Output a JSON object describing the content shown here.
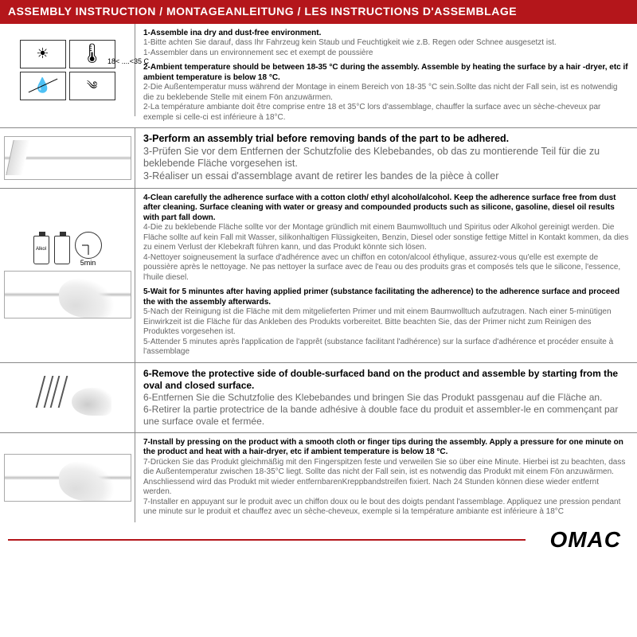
{
  "header": "ASSEMBLY INSTRUCTION / MONTAGEANLEITUNG / LES INSTRUCTIONS D'ASSEMBLAGE",
  "s1": {
    "temp_range": "18< ....<35 C",
    "l1": "1-Assemble ina dry and dust-free environment.",
    "l1de": "1-Bitte achten Sie darauf, dass Ihr Fahrzeug kein Staub und Feuchtigkeit wie z.B. Regen oder Schnee ausgesetzt ist.",
    "l1fr": "1-Assembler dans un environnement sec et exempt de poussière",
    "l2": "2-Ambient temperature should be between 18-35 °C  during the assembly. Assemble by heating the surface by a hair -dryer, etc if ambient temperature is below 18 °C.",
    "l2de": "2-Die Außentemperatur muss während der Montage in einem Bereich von 18-35 °C  sein.Sollte das nicht der Fall sein, ist es notwendig die zu beklebende Stelle mit einem Fön anzuwärmen.",
    "l2fr": "2-La température ambiante doit être comprise entre 18 et 35°C lors d'assemblage, chauffer la surface avec un sèche-cheveux par exemple si celle-ci est inférieure à 18°C."
  },
  "s2": {
    "l3": "3-Perform an assembly trial before removing bands of the part to be adhered.",
    "l3de": "3-Prüfen Sie vor dem Entfernen der Schutzfolie des Klebebandes, ob das zu montierende Teil für die zu beklebende Fläche vorgesehen ist.",
    "l3fr": "3-Réaliser un essai d'assemblage avant de retirer les bandes de la pièce à coller"
  },
  "s3": {
    "bottle": "Alkol",
    "clock_label": "5min",
    "l4": "4-Clean carefully the adherence surface with a cotton cloth/ ethyl alcohol/alcohol. Keep the adherence surface free from dust after cleaning. Surface cleaning with water or greasy and compounded products such as silicone, gasoline, diesel oil results with part fall down.",
    "l4de": "4-Die zu beklebende Fläche sollte vor der Montage gründlich mit einem Baumwolltuch und Spiritus oder Alkohol gereinigt werden. Die Fläche sollte auf kein Fall mit Wasser, silikonhaltigen Flüssigkeiten, Benzin, Diesel oder sonstige fettige Mittel in Kontakt kommen, da dies zu einem Verlust der Klebekraft führen kann, und das Produkt könnte sich lösen.",
    "l4fr": "4-Nettoyer soigneusement la surface d'adhérence avec un chiffon en coton/alcool éthylique, assurez-vous qu'elle est exempte de poussière après le nettoyage. Ne pas nettoyer la surface avec de l'eau ou des produits gras et composés tels que le silicone, l'essence, l'huile diesel.",
    "l5": "5-Wait for 5 minuntes after having applied primer (substance facilitating the adherence) to the adherence surface and proceed the with the assembly afterwards.",
    "l5de": "5-Nach der Reinigung ist die Fläche mit dem mitgelieferten Primer und mit einem Baumwolltuch aufzutragen. Nach einer 5-minütigen Einwirkzeit ist die Fläche für das Ankleben des Produkts vorbereitet. Bitte beachten Sie, das der Primer nicht zum Reinigen des Produktes vorgesehen ist.",
    "l5fr": "5-Attender 5 minutes après l'application de l'apprêt (substance facilitant l'adhérence) sur la surface d'adhérence et procéder ensuite à l'assemblage"
  },
  "s4": {
    "l6": "6-Remove the protective side of double-surfaced band on the product and assemble by starting from the oval and closed surface.",
    "l6de": "6-Entfernen Sie die Schutzfolie des Klebebandes und bringen Sie das Produkt passgenau auf die Fläche an.",
    "l6fr": "6-Retirer la partie protectrice de la bande adhésive à double face du produit et assembler-le en commençant par une surface ovale et fermée."
  },
  "s5": {
    "l7": "7-Install by pressing on the product with a smooth cloth or finger tips during the assembly. Apply a pressure for one minute on the product and heat with a hair-dryer, etc if ambient temperature is below 18 °C.",
    "l7de": "7-Drücken Sie das Produkt gleichmäßig mit den Fingerspitzen feste und verweilen Sie so über eine Minute. Hierbei ist zu beachten, dass die Außentemperatur zwischen 18-35°C liegt. Sollte das nicht der Fall sein, ist es notwendig das Produkt mit einem Fön anzuwärmen. Anschliessend wird das Produkt mit wieder entfernbarenKreppbandstreifen fixiert. Nach 24 Stunden können diese wieder entfernt werden.",
    "l7fr": "7-Installer en appuyant sur le produit avec un chiffon doux ou le bout des doigts pendant l'assemblage. Appliquez une pression pendant une minute sur le produit et chauffez avec un sèche-cheveux, exemple si la température ambiante est inférieure à 18°C"
  },
  "logo": "OMAC",
  "colors": {
    "accent": "#b4161b",
    "gray_text": "#666666"
  }
}
